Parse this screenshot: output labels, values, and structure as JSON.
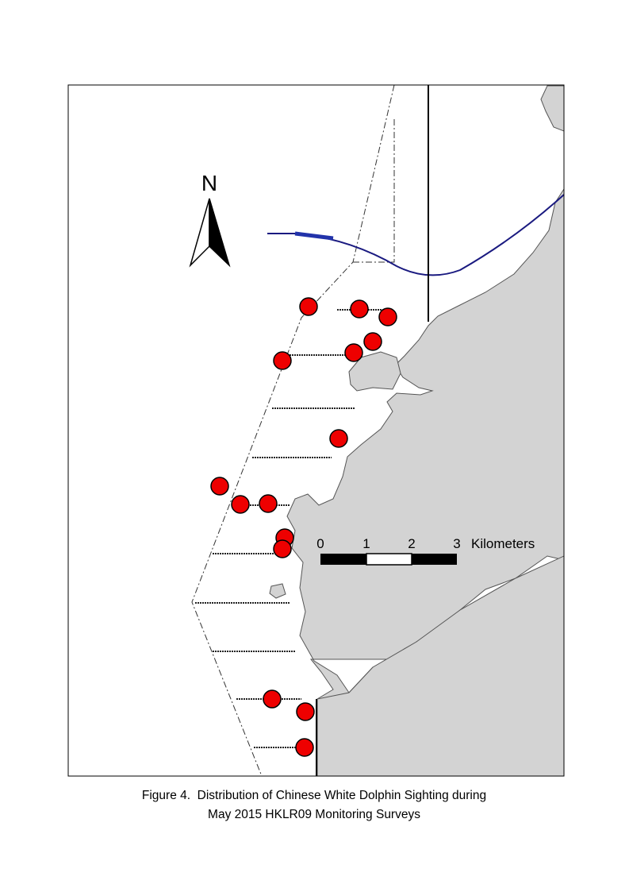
{
  "north_arrow": {
    "label": "N"
  },
  "scale_bar": {
    "labels": [
      "0",
      "1",
      "2",
      "3"
    ],
    "unit": "Kilometers"
  },
  "caption": [
    "Figure 4.  Distribution of Chinese White Dolphin Sighting during",
    "May 2015 HKLR09 Monitoring Surveys"
  ]
}
